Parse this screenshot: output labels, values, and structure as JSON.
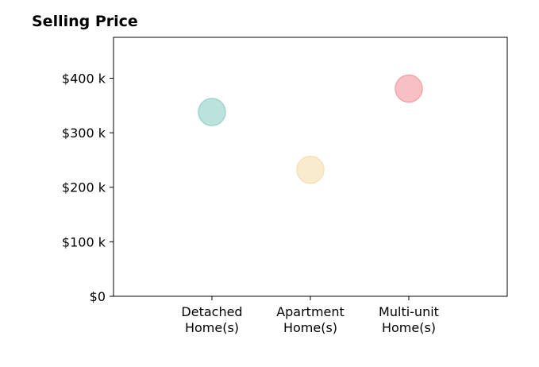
{
  "chart_data": {
    "type": "scatter",
    "title": "Selling Price",
    "xlabel": "",
    "ylabel": "",
    "categories": [
      [
        "Detached",
        "Home(s)"
      ],
      [
        "Apartment",
        "Home(s)"
      ],
      [
        "Multi-unit",
        "Home(s)"
      ]
    ],
    "values": [
      338000,
      232000,
      381000
    ],
    "colors": [
      "#9ed6cf",
      "#f7e2b8",
      "#f4a5ab"
    ],
    "ylim": [
      0,
      475000
    ],
    "yticks": [
      {
        "value": 0,
        "label": "$0"
      },
      {
        "value": 100000,
        "label": "$100 k"
      },
      {
        "value": 200000,
        "label": "$200 k"
      },
      {
        "value": 300000,
        "label": "$300 k"
      },
      {
        "value": 400000,
        "label": "$400 k"
      }
    ],
    "grid": false,
    "legend": "none"
  }
}
